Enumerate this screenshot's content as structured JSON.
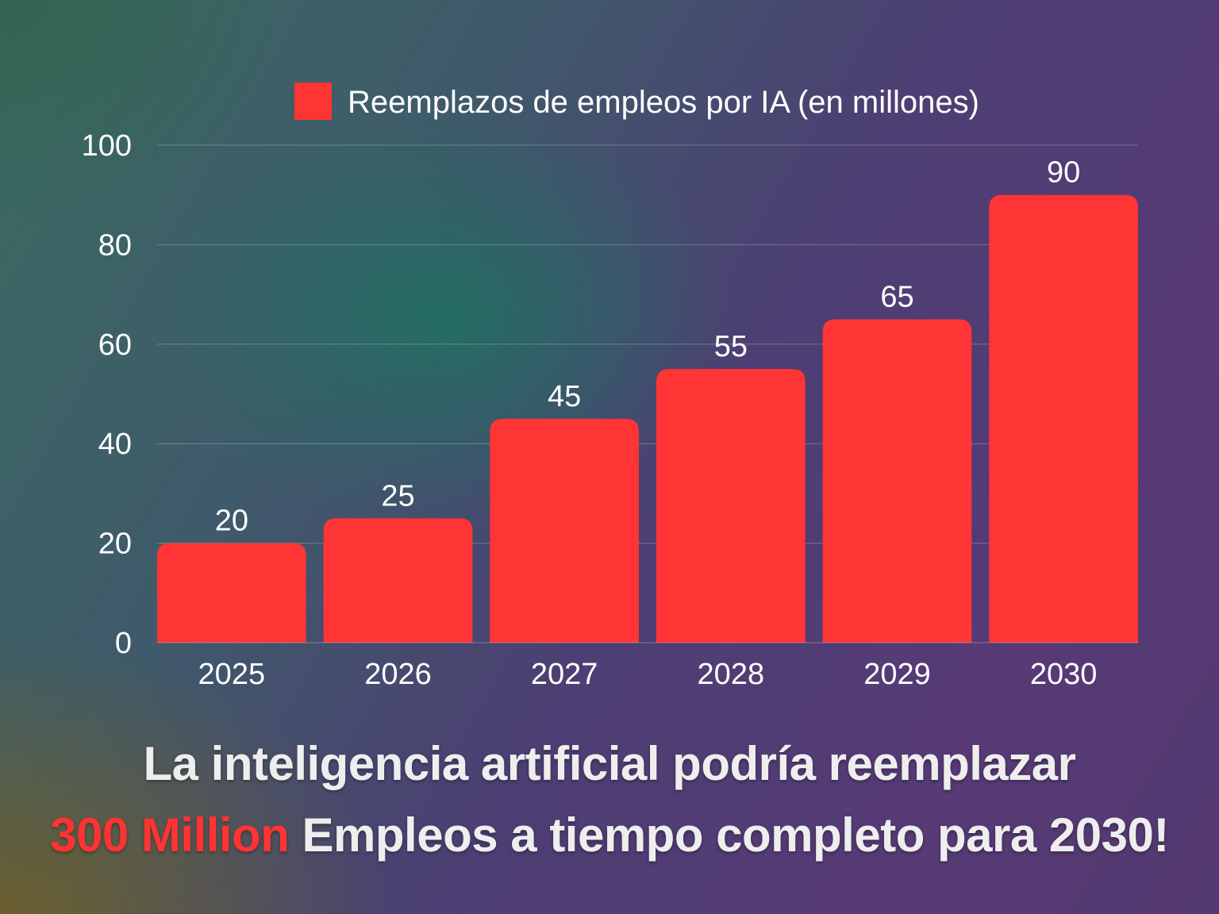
{
  "colors": {
    "bar": "#ff3535",
    "text": "#ffffff",
    "grid": "rgba(255,255,255,0.25)",
    "accent": "#ff3333"
  },
  "chart_data": {
    "type": "bar",
    "categories": [
      "2025",
      "2026",
      "2027",
      "2028",
      "2029",
      "2030"
    ],
    "series": [
      {
        "name": "Reemplazos de empleos por IA (en millones)",
        "values": [
          20,
          25,
          45,
          55,
          65,
          90
        ]
      }
    ],
    "ylim": [
      0,
      100
    ],
    "yticks": [
      0,
      20,
      40,
      60,
      80,
      100
    ],
    "grid": true,
    "legend_position": "top",
    "data_labels": true
  },
  "caption": {
    "line1": "La inteligencia artificial podría reemplazar",
    "line2_accent": "300 Million",
    "line2_rest": " Empleos a tiempo completo para 2030!"
  }
}
